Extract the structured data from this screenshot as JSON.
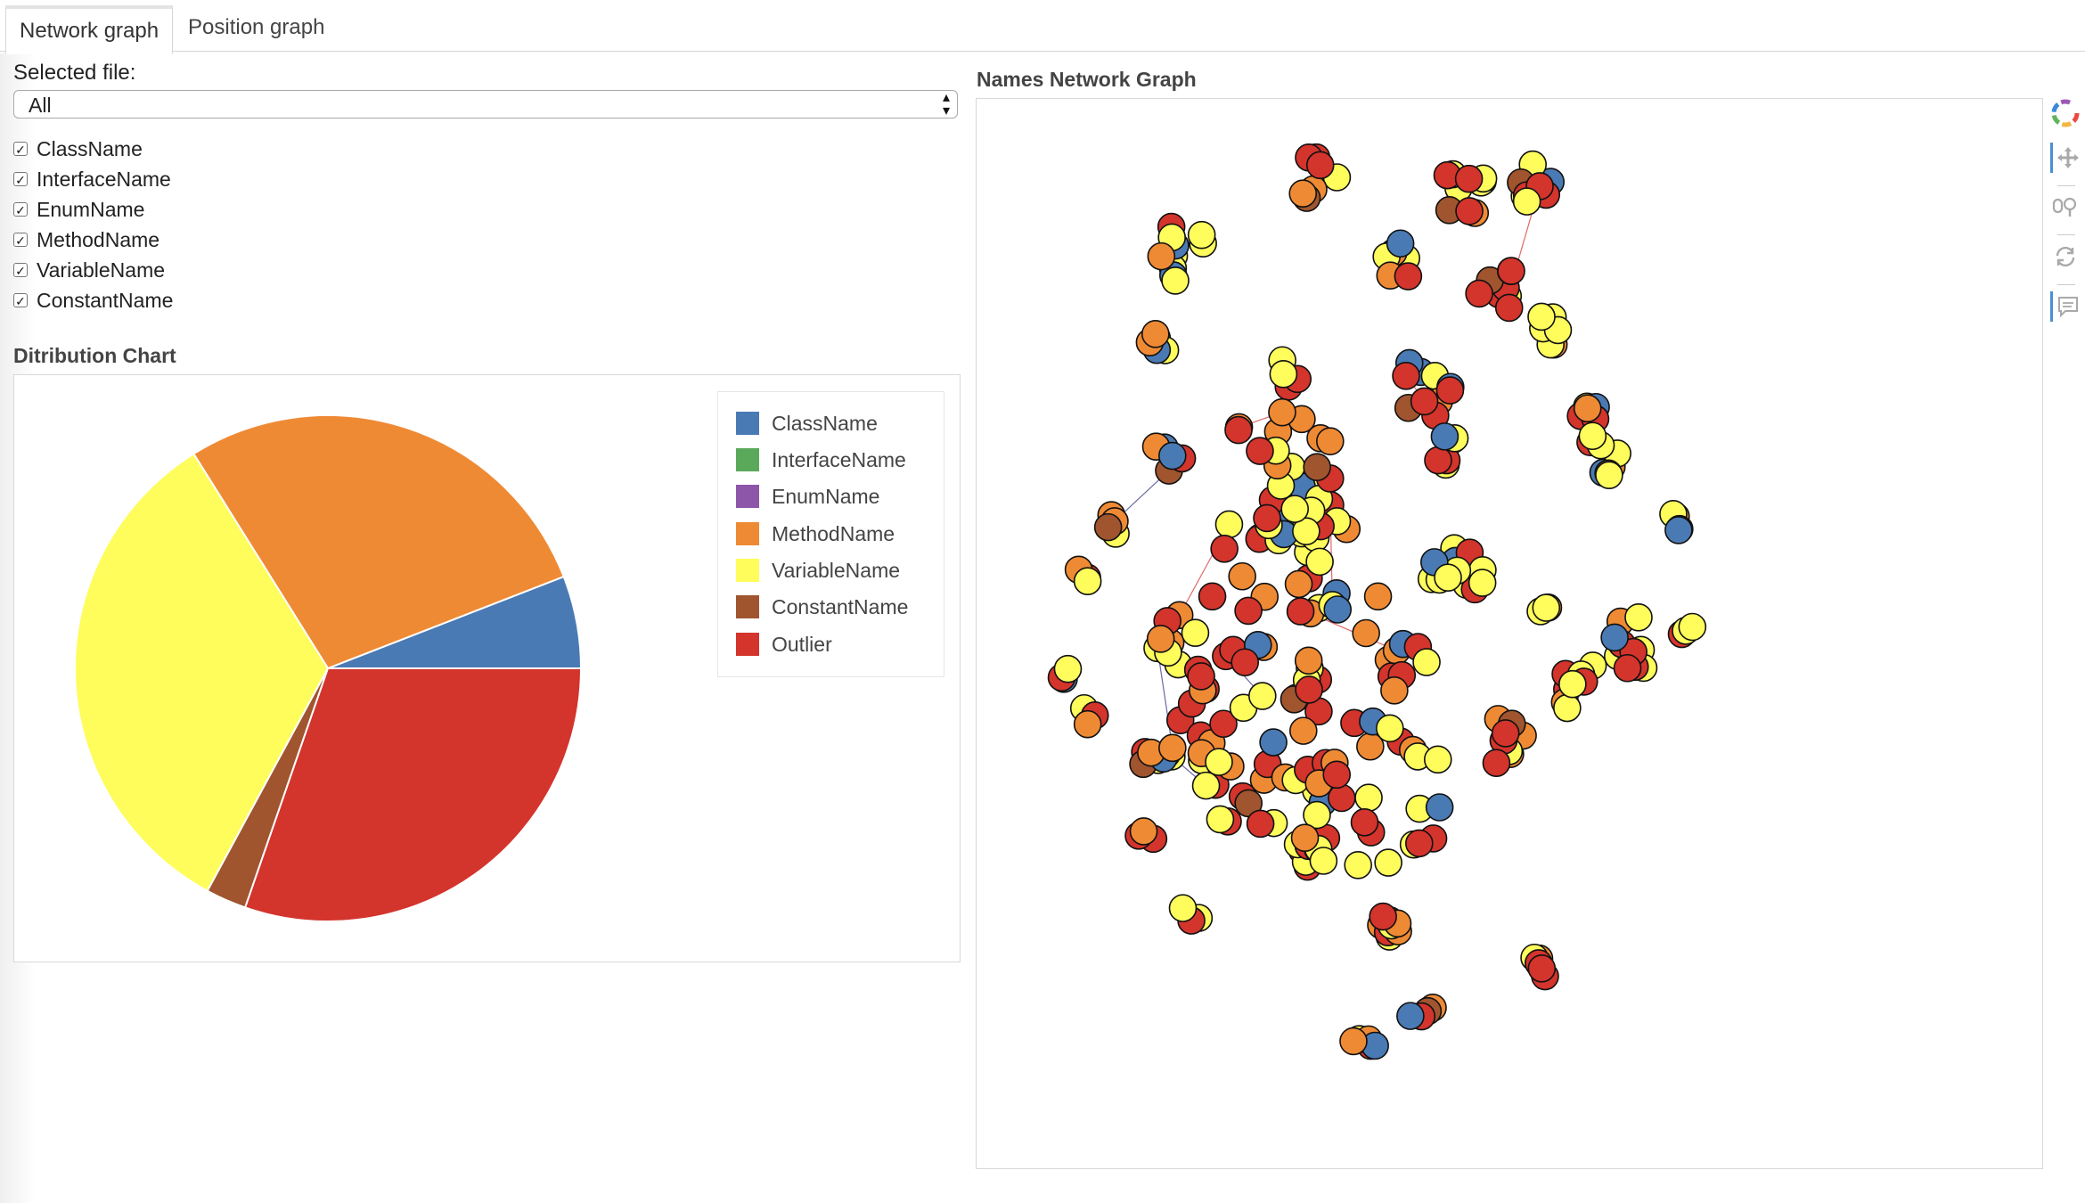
{
  "tabs": [
    {
      "label": "Network graph",
      "active": true
    },
    {
      "label": "Position graph",
      "active": false
    }
  ],
  "file_selector": {
    "label": "Selected file:",
    "value": "All"
  },
  "filters": [
    {
      "label": "ClassName",
      "checked": true
    },
    {
      "label": "InterfaceName",
      "checked": true
    },
    {
      "label": "EnumName",
      "checked": true
    },
    {
      "label": "MethodName",
      "checked": true
    },
    {
      "label": "VariableName",
      "checked": true
    },
    {
      "label": "ConstantName",
      "checked": true
    }
  ],
  "colors": {
    "ClassName": "#4a7ab4",
    "InterfaceName": "#5aa95a",
    "EnumName": "#8e56a8",
    "MethodName": "#ef8a34",
    "VariableName": "#fefd5c",
    "ConstantName": "#a0552e",
    "Outlier": "#d3342c"
  },
  "toolbar": {
    "icons": [
      "bokeh-logo-icon",
      "pan-icon",
      "wheel-zoom-icon",
      "reset-icon",
      "hover-icon"
    ]
  },
  "chart_data": [
    {
      "type": "pie",
      "title": "Ditribution Chart",
      "categories": [
        "ClassName",
        "InterfaceName",
        "EnumName",
        "MethodName",
        "VariableName",
        "ConstantName",
        "Outlier"
      ],
      "values": [
        5.9,
        0,
        0,
        28.0,
        33.2,
        2.6,
        30.3
      ],
      "unit": "% (estimated)",
      "legend_position": "top-right"
    },
    {
      "type": "scatter",
      "title": "Names Network Graph",
      "description": "force-directed network of name nodes colored by category",
      "series": [
        {
          "name": "ClassName",
          "count_estimate": 35
        },
        {
          "name": "MethodName",
          "count_estimate": 150
        },
        {
          "name": "VariableName",
          "count_estimate": 170
        },
        {
          "name": "ConstantName",
          "count_estimate": 10
        },
        {
          "name": "Outlier",
          "count_estimate": 160
        }
      ],
      "axes_visible": false,
      "grid": false
    }
  ]
}
